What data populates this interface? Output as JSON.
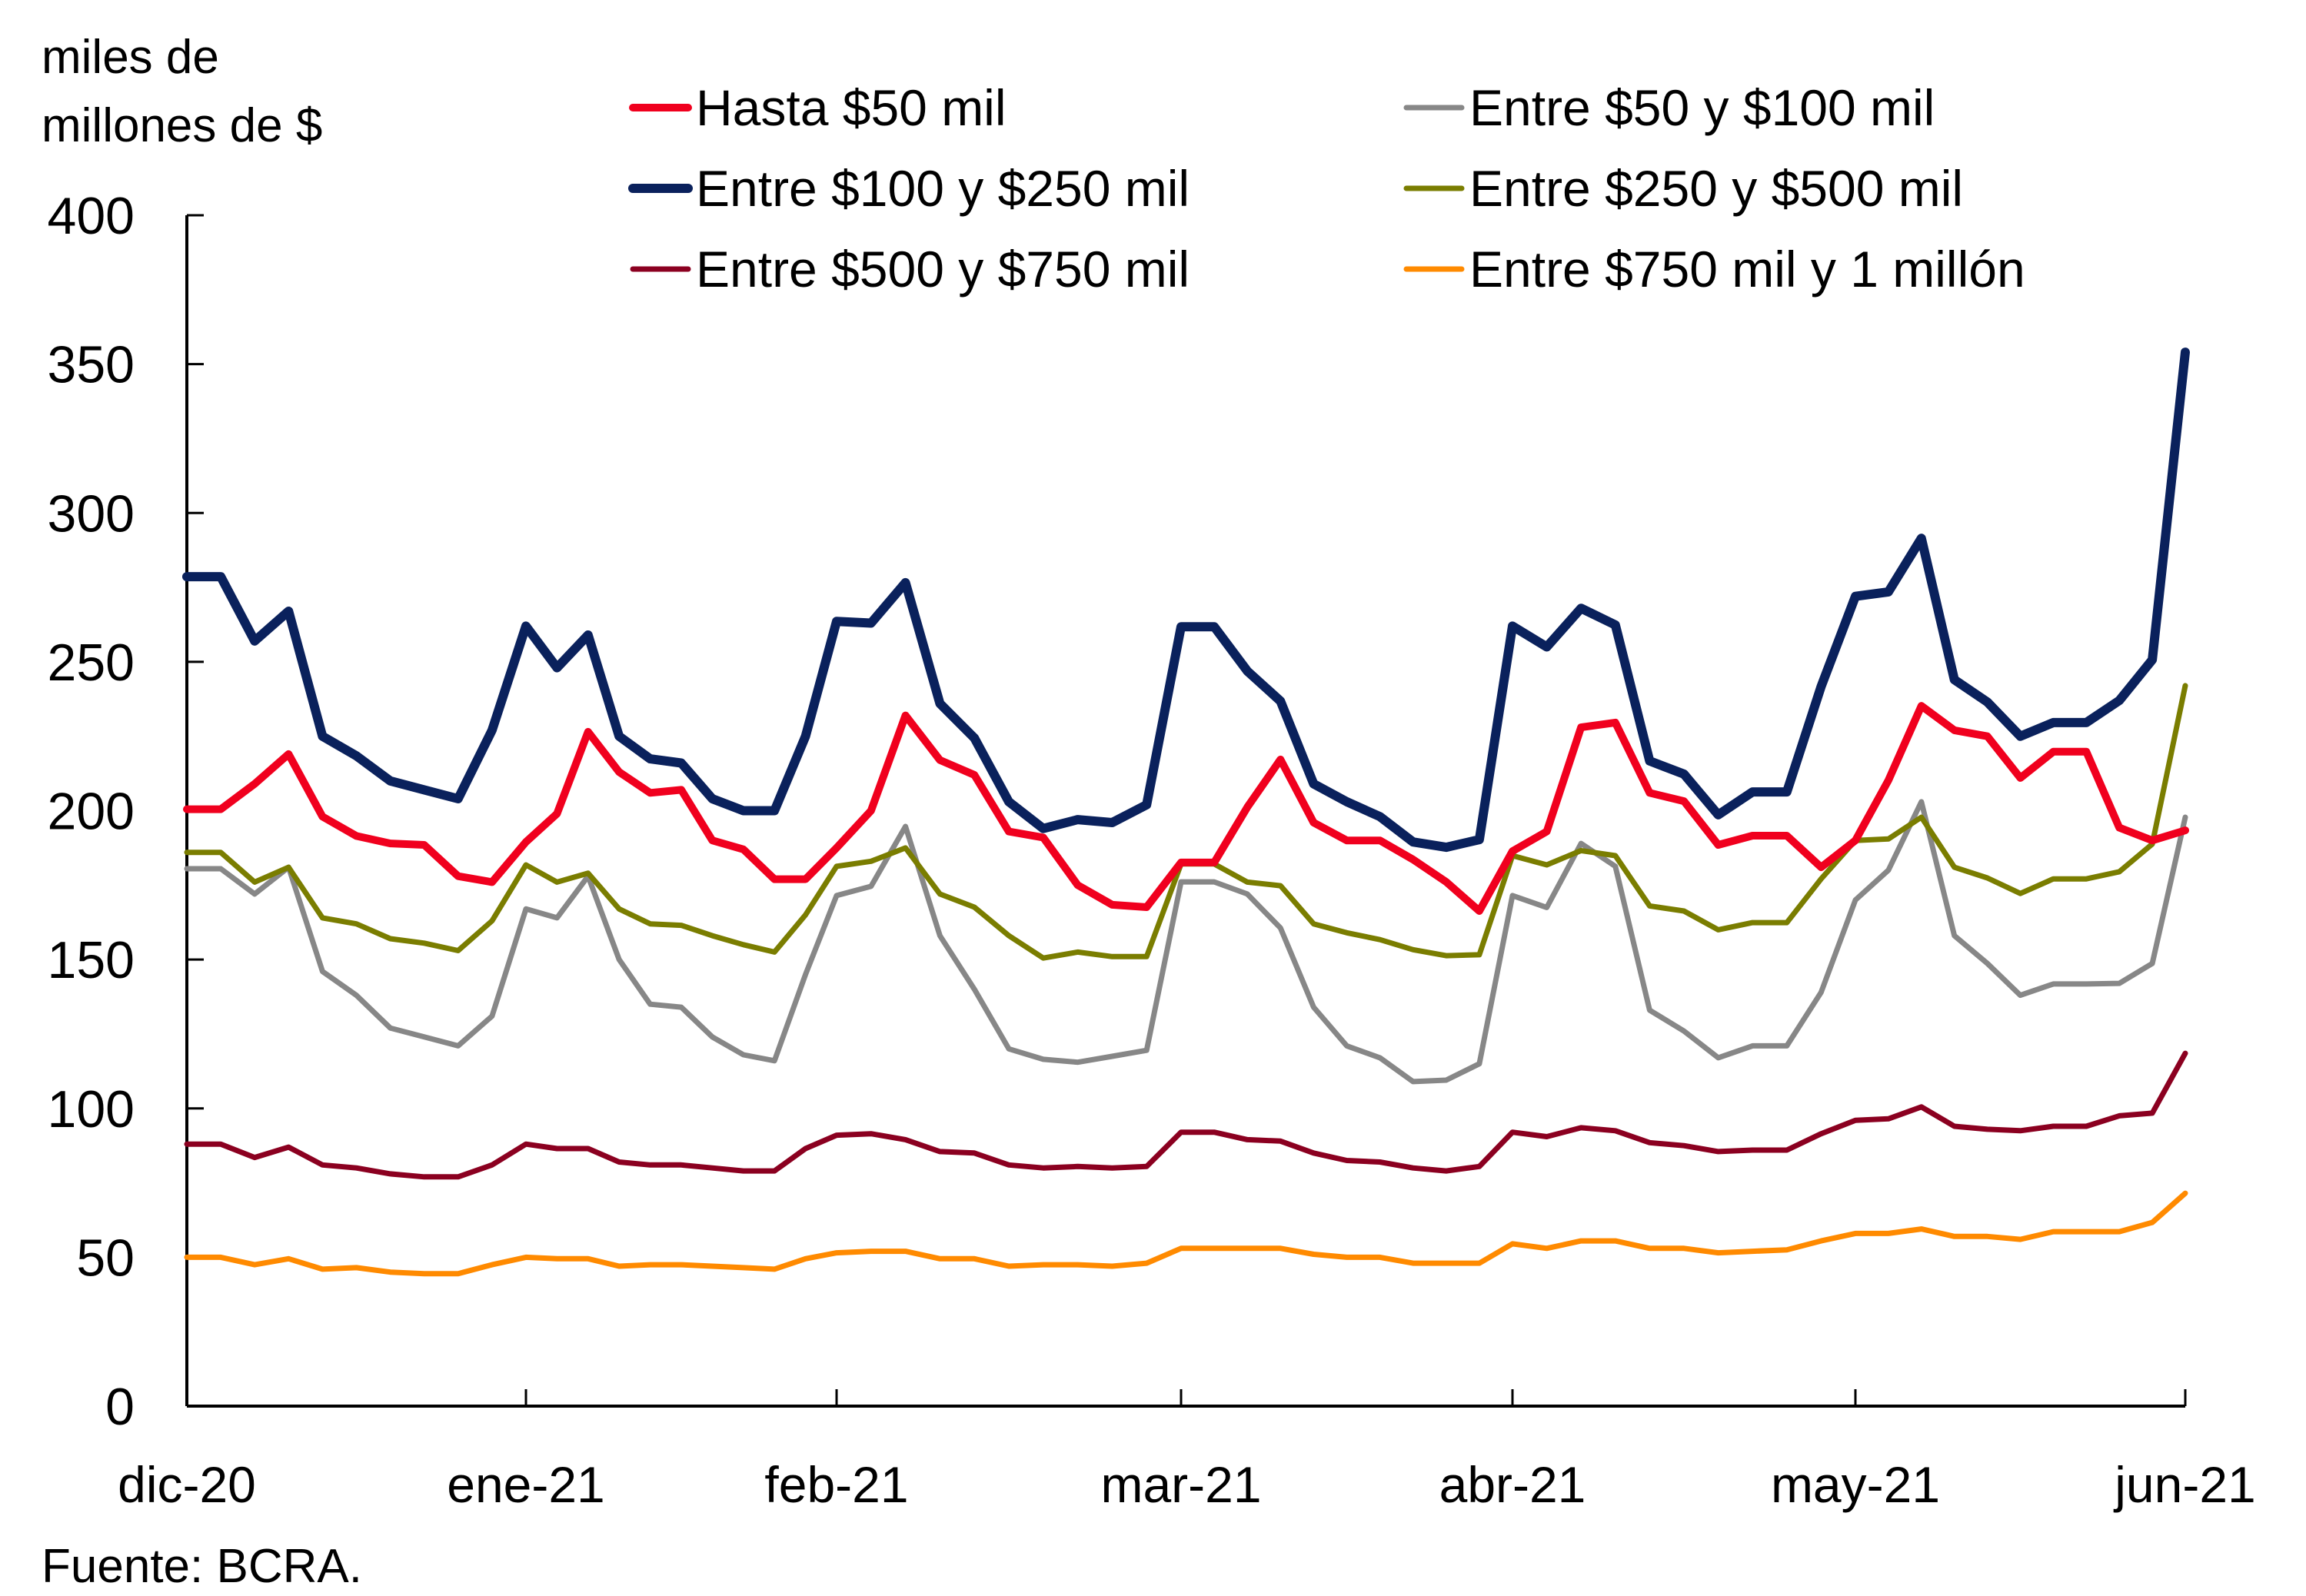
{
  "chart_data": {
    "type": "line",
    "title": "",
    "ylabel_lines": [
      "miles de",
      "millones de $"
    ],
    "xlabel": "",
    "source": "Fuente: BCRA.",
    "ylim": [
      0,
      400
    ],
    "yticks": [
      0,
      50,
      100,
      150,
      200,
      250,
      300,
      350,
      400
    ],
    "x_unit": "months since dic-20",
    "xlim": [
      0,
      6
    ],
    "xticks": [
      {
        "pos": 0,
        "label": "dic-20"
      },
      {
        "pos": 1,
        "label": "ene-21"
      },
      {
        "pos": 2,
        "label": "feb-21"
      },
      {
        "pos": 3,
        "label": "mar-21"
      },
      {
        "pos": 4,
        "label": "abr-21"
      },
      {
        "pos": 5,
        "label": "may-21"
      },
      {
        "pos": 6,
        "label": "jun-21"
      }
    ],
    "grid": false,
    "legend_position": "top",
    "sample_step_months": 0.1,
    "series": [
      {
        "name": "Hasta $50 mil",
        "color": "#F0001E",
        "weight": "medium",
        "values": [
          200.5,
          200.5,
          209,
          219,
          198,
          191.5,
          189,
          188.5,
          178,
          176,
          189.5,
          199,
          226.5,
          213,
          206,
          207,
          190,
          187,
          177,
          177,
          187.5,
          200,
          232,
          217,
          212,
          193,
          191,
          175,
          168.4,
          167.6,
          182.6,
          182.6,
          201.2,
          217.2,
          196,
          190,
          190,
          183.6,
          176.1,
          166.3,
          186.4,
          193,
          228,
          229.6,
          206,
          203.2,
          188.5,
          191.6,
          191.6,
          181,
          190,
          210.2,
          235.2,
          227,
          225,
          211,
          219.8,
          219.8,
          194.3,
          190,
          193.4
        ]
      },
      {
        "name": "Entre $50 y $100 mil",
        "color": "#878787",
        "weight": "thin",
        "values": [
          180.5,
          180.5,
          172,
          181,
          146,
          138,
          127,
          124,
          121,
          131,
          167,
          164,
          178,
          150,
          135,
          134,
          124,
          118,
          116,
          145,
          171.5,
          174.6,
          194.7,
          158,
          140,
          120,
          116.5,
          115.5,
          117.5,
          119.5,
          176.1,
          176.1,
          172,
          160.6,
          134,
          121,
          117,
          109,
          109.5,
          115,
          171.5,
          167.5,
          189,
          181.3,
          133,
          126,
          117,
          121,
          121,
          139,
          170,
          180,
          203,
          158,
          148.7,
          138,
          141.8,
          141.8,
          142,
          148.7,
          197.8
        ]
      },
      {
        "name": "Entre $100 y $250 mil",
        "color": "#0A215C",
        "weight": "thick",
        "values": [
          278.6,
          278.6,
          257,
          267,
          225,
          218.4,
          210,
          207,
          204,
          227,
          262,
          248,
          259,
          225,
          217.4,
          216,
          204,
          200,
          200,
          225,
          263.6,
          263,
          276.6,
          236,
          224.4,
          203,
          194,
          197,
          196,
          202,
          261.8,
          261.8,
          246.9,
          236.8,
          209,
          203,
          198,
          189.5,
          187.7,
          190.3,
          262,
          255,
          268,
          262.4,
          216.7,
          212.3,
          198.6,
          206.3,
          206.3,
          241.7,
          272,
          273.5,
          291.5,
          244,
          236.5,
          225,
          229.6,
          229.6,
          237,
          250.7,
          354
        ]
      },
      {
        "name": "Entre $250 y $500 mil",
        "color": "#7A7D00",
        "weight": "thin",
        "values": [
          186,
          186,
          176,
          181,
          164,
          162,
          157,
          155.5,
          153,
          163,
          181.8,
          176,
          179,
          167,
          162,
          161.5,
          158,
          155,
          152.5,
          165,
          181.3,
          183,
          187.5,
          172,
          167.6,
          158,
          150.5,
          152.5,
          151,
          151,
          182.1,
          182.1,
          176,
          174.8,
          162,
          159,
          156.7,
          153.3,
          151.3,
          151.6,
          184.9,
          181.8,
          186.6,
          184.9,
          168,
          166.3,
          160,
          162.4,
          162.4,
          177.1,
          190,
          190.5,
          197.8,
          181,
          177.4,
          172.2,
          177.1,
          177.1,
          179.5,
          188.8,
          242
        ]
      },
      {
        "name": "Entre $500 y $750 mil",
        "color": "#8B0020",
        "weight": "thin",
        "values": [
          88,
          88,
          83.5,
          87,
          81,
          80,
          78,
          77,
          77,
          81,
          88,
          86.5,
          86.5,
          82,
          81,
          81,
          80,
          79,
          79,
          86.5,
          91,
          91.5,
          89.5,
          85.5,
          85,
          81,
          80,
          80.5,
          80,
          80.5,
          92,
          92,
          89.5,
          89,
          85,
          82.5,
          82,
          80,
          79,
          80.5,
          92,
          90.5,
          93.5,
          92.5,
          88.5,
          87.5,
          85.5,
          86,
          86,
          91.5,
          96,
          96.5,
          100.5,
          94,
          93,
          92.5,
          94,
          94,
          97.5,
          98.4,
          118.5
        ]
      },
      {
        "name": "Entre $750 mil y 1 millón",
        "color": "#FF8A00",
        "weight": "thin",
        "values": [
          50,
          50,
          47.5,
          49.5,
          46,
          46.5,
          45,
          44.5,
          44.5,
          47.5,
          50,
          49.5,
          49.5,
          47,
          47.5,
          47.5,
          47,
          46.5,
          46,
          49.5,
          51.5,
          52,
          52,
          49.5,
          49.5,
          47,
          47.5,
          47.5,
          47,
          48,
          53,
          53,
          53,
          53,
          51,
          50,
          50,
          48,
          48,
          48,
          54.5,
          53,
          55.5,
          55.5,
          53,
          53,
          51.5,
          52,
          52.5,
          55.5,
          58,
          58,
          59.5,
          57,
          57,
          56,
          58.6,
          58.6,
          58.6,
          61.7,
          71.5
        ]
      }
    ]
  }
}
